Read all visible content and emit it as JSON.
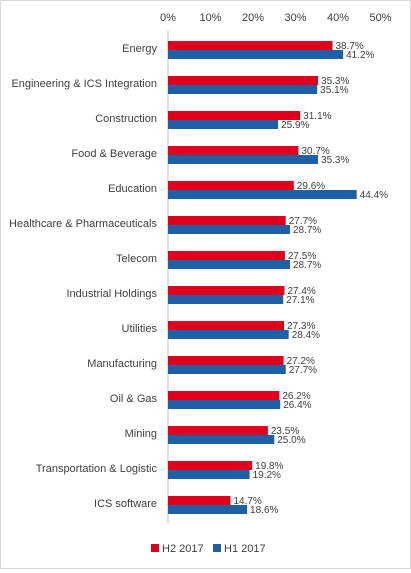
{
  "chart_data": {
    "type": "bar",
    "orientation": "horizontal",
    "title": "",
    "xlabel": "",
    "ylabel": "",
    "xlim": [
      0,
      50
    ],
    "x_ticks": [
      "0%",
      "10%",
      "20%",
      "30%",
      "40%",
      "50%"
    ],
    "x_axis_position": "top",
    "grid": false,
    "legend_position": "bottom",
    "categories": [
      "Energy",
      "Engineering & ICS Integration",
      "Construction",
      "Food & Beverage",
      "Education",
      "Healthcare & Pharmaceuticals",
      "Telecom",
      "Industrial Holdings",
      "Utilities",
      "Manufacturing",
      "Oil & Gas",
      "Mining",
      "Transportation & Logistic",
      "ICS software"
    ],
    "series": [
      {
        "name": "H2 2017",
        "color": "#e0001b",
        "values": [
          38.7,
          35.3,
          31.1,
          30.7,
          29.6,
          27.7,
          27.5,
          27.4,
          27.3,
          27.2,
          26.2,
          23.5,
          19.8,
          14.7
        ],
        "labels": [
          "38.7%",
          "35.3%",
          "31.1%",
          "30.7%",
          "29.6%",
          "27.7%",
          "27.5%",
          "27.4%",
          "27.3%",
          "27.2%",
          "26.2%",
          "23.5%",
          "19.8%",
          "14.7%"
        ]
      },
      {
        "name": "H1 2017",
        "color": "#1f5fa6",
        "values": [
          41.2,
          35.1,
          25.9,
          35.3,
          44.4,
          28.7,
          28.7,
          27.1,
          28.4,
          27.7,
          26.4,
          25.0,
          19.2,
          18.6
        ],
        "labels": [
          "41.2%",
          "35.1%",
          "25.9%",
          "35.3%",
          "44.4%",
          "28.7%",
          "28.7%",
          "27.1%",
          "28.4%",
          "27.7%",
          "26.4%",
          "25.0%",
          "19.2%",
          "18.6%"
        ]
      }
    ]
  }
}
